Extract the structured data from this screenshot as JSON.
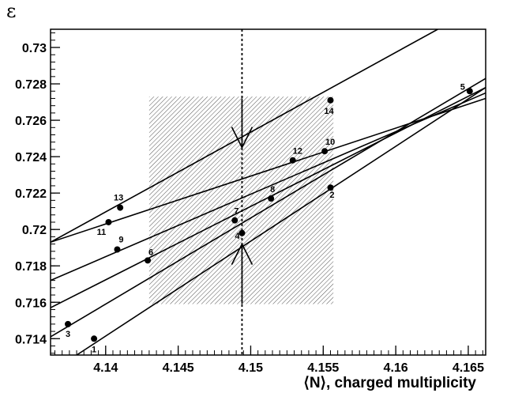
{
  "chart_data": {
    "type": "scatter",
    "title": "",
    "xlabel": "⟨N⟩, charged multiplicity",
    "ylabel": "ε",
    "xlim": [
      4.1362,
      4.1662
    ],
    "ylim": [
      0.7131,
      0.731
    ],
    "xticks": [
      4.14,
      4.145,
      4.15,
      4.155,
      4.16,
      4.165
    ],
    "xtick_labels": [
      "4.14",
      "4.145",
      "4.15",
      "4.155",
      "4.16",
      "4.165"
    ],
    "yticks": [
      0.714,
      0.716,
      0.718,
      0.72,
      0.722,
      0.724,
      0.726,
      0.728,
      0.73
    ],
    "ytick_labels": [
      "0.714",
      "0.716",
      "0.718",
      "0.72",
      "0.722",
      "0.724",
      "0.726",
      "0.728",
      "0.73"
    ],
    "grid": false,
    "points": [
      {
        "label": "1",
        "x": 4.1392,
        "y": 0.714
      },
      {
        "label": "2",
        "x": 4.1555,
        "y": 0.7223
      },
      {
        "label": "3",
        "x": 4.1374,
        "y": 0.7148
      },
      {
        "label": "4",
        "x": 4.1494,
        "y": 0.7198
      },
      {
        "label": "5",
        "x": 4.1651,
        "y": 0.7276
      },
      {
        "label": "6",
        "x": 4.1429,
        "y": 0.7183
      },
      {
        "label": "7",
        "x": 4.1489,
        "y": 0.7205
      },
      {
        "label": "8",
        "x": 4.1514,
        "y": 0.7217
      },
      {
        "label": "9",
        "x": 4.1408,
        "y": 0.7189
      },
      {
        "label": "10",
        "x": 4.1551,
        "y": 0.7243
      },
      {
        "label": "11",
        "x": 4.1402,
        "y": 0.7204
      },
      {
        "label": "12",
        "x": 4.1529,
        "y": 0.7238
      },
      {
        "label": "13",
        "x": 4.141,
        "y": 0.7212
      },
      {
        "label": "14",
        "x": 4.1555,
        "y": 0.7271
      }
    ],
    "lines": [
      {
        "from": [
          4.1362,
          0.7193
        ],
        "to": [
          4.1629,
          0.731
        ]
      },
      {
        "from": [
          4.1362,
          0.7193
        ],
        "to": [
          4.1662,
          0.7272
        ]
      },
      {
        "from": [
          4.1362,
          0.7172
        ],
        "to": [
          4.1662,
          0.7275
        ]
      },
      {
        "from": [
          4.1362,
          0.7157
        ],
        "to": [
          4.1662,
          0.7278
        ]
      },
      {
        "from": [
          4.1362,
          0.7141
        ],
        "to": [
          4.1662,
          0.7283
        ]
      },
      {
        "from": [
          4.138,
          0.7131
        ],
        "to": [
          4.1662,
          0.7278
        ]
      }
    ],
    "band": {
      "x": [
        4.143,
        4.1557
      ],
      "y": [
        0.7159,
        0.7273
      ]
    },
    "vertical_marker": {
      "x": 4.1494
    },
    "arrows": [
      {
        "x": 4.1494,
        "from_y": 0.7272,
        "to_y": 0.7245
      },
      {
        "x": 4.1494,
        "from_y": 0.7159,
        "to_y": 0.7192
      }
    ]
  }
}
